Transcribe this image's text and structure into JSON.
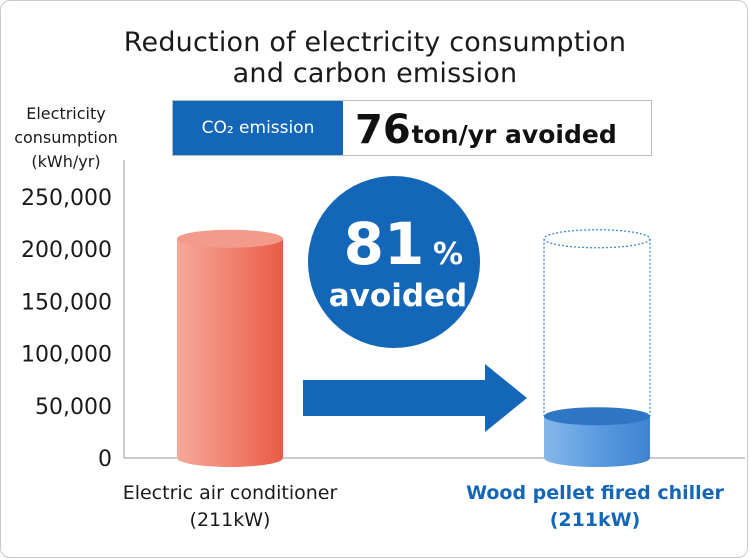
{
  "title_line1": "Reduction of electricity consumption",
  "title_line2": "and carbon emission",
  "co2": {
    "label": "CO₂ emission",
    "value": "76",
    "unit_text": "ton/yr avoided"
  },
  "badge": {
    "percent_value": "81",
    "percent_sign": "%",
    "text": "avoided"
  },
  "colors": {
    "accent_blue": "#1467b8",
    "bar_red": "#ef6a55",
    "bar_blue": "#4b8fd6",
    "ghost_outline": "#3a8ad6"
  },
  "chart_data": {
    "type": "bar",
    "ylabel_lines": [
      "Electricity",
      "consumption",
      "(kWh/yr)"
    ],
    "yticks": [
      "0",
      "50,000",
      "100,000",
      "150,000",
      "200,000",
      "250,000"
    ],
    "ylim": [
      0,
      250000
    ],
    "categories": [
      {
        "line1": "Electric air conditioner",
        "line2": "(211kW)"
      },
      {
        "line1": "Wood pellet fired chiller",
        "line2": "(211kW)"
      }
    ],
    "values": [
      210000,
      40000
    ],
    "ghost_value": 210000,
    "grid": false
  }
}
